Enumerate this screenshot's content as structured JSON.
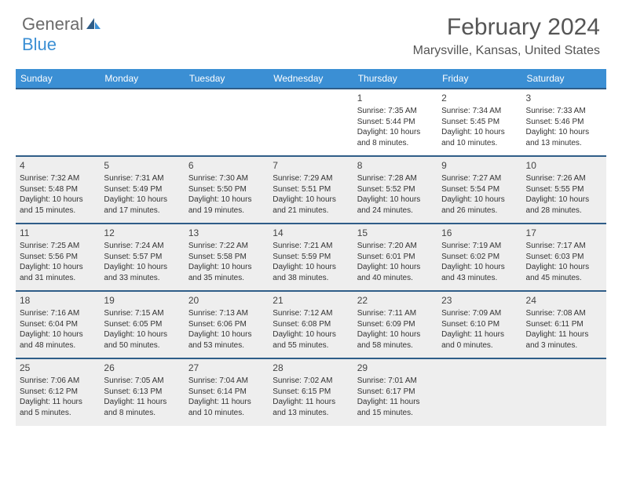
{
  "logo": {
    "part1": "General",
    "part2": "Blue"
  },
  "title": "February 2024",
  "location": "Marysville, Kansas, United States",
  "colors": {
    "header_bg": "#3b8fd4",
    "header_text": "#ffffff",
    "row_border": "#2f5d88",
    "shaded_bg": "#eeeeee",
    "text": "#333333",
    "title_text": "#555555"
  },
  "weekdays": [
    "Sunday",
    "Monday",
    "Tuesday",
    "Wednesday",
    "Thursday",
    "Friday",
    "Saturday"
  ],
  "weeks": [
    {
      "shaded": false,
      "days": [
        null,
        null,
        null,
        null,
        {
          "n": "1",
          "sunrise": "Sunrise: 7:35 AM",
          "sunset": "Sunset: 5:44 PM",
          "day": "Daylight: 10 hours and 8 minutes."
        },
        {
          "n": "2",
          "sunrise": "Sunrise: 7:34 AM",
          "sunset": "Sunset: 5:45 PM",
          "day": "Daylight: 10 hours and 10 minutes."
        },
        {
          "n": "3",
          "sunrise": "Sunrise: 7:33 AM",
          "sunset": "Sunset: 5:46 PM",
          "day": "Daylight: 10 hours and 13 minutes."
        }
      ]
    },
    {
      "shaded": true,
      "days": [
        {
          "n": "4",
          "sunrise": "Sunrise: 7:32 AM",
          "sunset": "Sunset: 5:48 PM",
          "day": "Daylight: 10 hours and 15 minutes."
        },
        {
          "n": "5",
          "sunrise": "Sunrise: 7:31 AM",
          "sunset": "Sunset: 5:49 PM",
          "day": "Daylight: 10 hours and 17 minutes."
        },
        {
          "n": "6",
          "sunrise": "Sunrise: 7:30 AM",
          "sunset": "Sunset: 5:50 PM",
          "day": "Daylight: 10 hours and 19 minutes."
        },
        {
          "n": "7",
          "sunrise": "Sunrise: 7:29 AM",
          "sunset": "Sunset: 5:51 PM",
          "day": "Daylight: 10 hours and 21 minutes."
        },
        {
          "n": "8",
          "sunrise": "Sunrise: 7:28 AM",
          "sunset": "Sunset: 5:52 PM",
          "day": "Daylight: 10 hours and 24 minutes."
        },
        {
          "n": "9",
          "sunrise": "Sunrise: 7:27 AM",
          "sunset": "Sunset: 5:54 PM",
          "day": "Daylight: 10 hours and 26 minutes."
        },
        {
          "n": "10",
          "sunrise": "Sunrise: 7:26 AM",
          "sunset": "Sunset: 5:55 PM",
          "day": "Daylight: 10 hours and 28 minutes."
        }
      ]
    },
    {
      "shaded": true,
      "days": [
        {
          "n": "11",
          "sunrise": "Sunrise: 7:25 AM",
          "sunset": "Sunset: 5:56 PM",
          "day": "Daylight: 10 hours and 31 minutes."
        },
        {
          "n": "12",
          "sunrise": "Sunrise: 7:24 AM",
          "sunset": "Sunset: 5:57 PM",
          "day": "Daylight: 10 hours and 33 minutes."
        },
        {
          "n": "13",
          "sunrise": "Sunrise: 7:22 AM",
          "sunset": "Sunset: 5:58 PM",
          "day": "Daylight: 10 hours and 35 minutes."
        },
        {
          "n": "14",
          "sunrise": "Sunrise: 7:21 AM",
          "sunset": "Sunset: 5:59 PM",
          "day": "Daylight: 10 hours and 38 minutes."
        },
        {
          "n": "15",
          "sunrise": "Sunrise: 7:20 AM",
          "sunset": "Sunset: 6:01 PM",
          "day": "Daylight: 10 hours and 40 minutes."
        },
        {
          "n": "16",
          "sunrise": "Sunrise: 7:19 AM",
          "sunset": "Sunset: 6:02 PM",
          "day": "Daylight: 10 hours and 43 minutes."
        },
        {
          "n": "17",
          "sunrise": "Sunrise: 7:17 AM",
          "sunset": "Sunset: 6:03 PM",
          "day": "Daylight: 10 hours and 45 minutes."
        }
      ]
    },
    {
      "shaded": true,
      "days": [
        {
          "n": "18",
          "sunrise": "Sunrise: 7:16 AM",
          "sunset": "Sunset: 6:04 PM",
          "day": "Daylight: 10 hours and 48 minutes."
        },
        {
          "n": "19",
          "sunrise": "Sunrise: 7:15 AM",
          "sunset": "Sunset: 6:05 PM",
          "day": "Daylight: 10 hours and 50 minutes."
        },
        {
          "n": "20",
          "sunrise": "Sunrise: 7:13 AM",
          "sunset": "Sunset: 6:06 PM",
          "day": "Daylight: 10 hours and 53 minutes."
        },
        {
          "n": "21",
          "sunrise": "Sunrise: 7:12 AM",
          "sunset": "Sunset: 6:08 PM",
          "day": "Daylight: 10 hours and 55 minutes."
        },
        {
          "n": "22",
          "sunrise": "Sunrise: 7:11 AM",
          "sunset": "Sunset: 6:09 PM",
          "day": "Daylight: 10 hours and 58 minutes."
        },
        {
          "n": "23",
          "sunrise": "Sunrise: 7:09 AM",
          "sunset": "Sunset: 6:10 PM",
          "day": "Daylight: 11 hours and 0 minutes."
        },
        {
          "n": "24",
          "sunrise": "Sunrise: 7:08 AM",
          "sunset": "Sunset: 6:11 PM",
          "day": "Daylight: 11 hours and 3 minutes."
        }
      ]
    },
    {
      "shaded": true,
      "days": [
        {
          "n": "25",
          "sunrise": "Sunrise: 7:06 AM",
          "sunset": "Sunset: 6:12 PM",
          "day": "Daylight: 11 hours and 5 minutes."
        },
        {
          "n": "26",
          "sunrise": "Sunrise: 7:05 AM",
          "sunset": "Sunset: 6:13 PM",
          "day": "Daylight: 11 hours and 8 minutes."
        },
        {
          "n": "27",
          "sunrise": "Sunrise: 7:04 AM",
          "sunset": "Sunset: 6:14 PM",
          "day": "Daylight: 11 hours and 10 minutes."
        },
        {
          "n": "28",
          "sunrise": "Sunrise: 7:02 AM",
          "sunset": "Sunset: 6:15 PM",
          "day": "Daylight: 11 hours and 13 minutes."
        },
        {
          "n": "29",
          "sunrise": "Sunrise: 7:01 AM",
          "sunset": "Sunset: 6:17 PM",
          "day": "Daylight: 11 hours and 15 minutes."
        },
        null,
        null
      ]
    }
  ]
}
